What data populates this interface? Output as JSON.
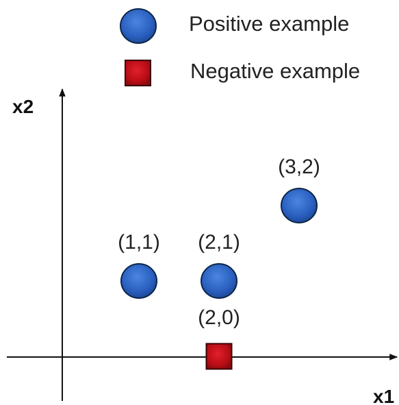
{
  "legend": {
    "positive_label": "Positive example",
    "negative_label": "Negative example"
  },
  "axes": {
    "x_label": "x1",
    "y_label": "x2"
  },
  "colors": {
    "positive_fill": "#2a5fbf",
    "positive_stroke": "#0d2547",
    "negative_fill": "#c0101a",
    "negative_stroke": "#3a0305",
    "axis": "#111111"
  },
  "chart_data": {
    "type": "scatter",
    "xlabel": "x1",
    "ylabel": "x2",
    "series": [
      {
        "name": "Positive example",
        "marker": "circle",
        "points": [
          {
            "x": 1,
            "y": 1,
            "label": "(1,1)"
          },
          {
            "x": 2,
            "y": 1,
            "label": "(2,1)"
          },
          {
            "x": 3,
            "y": 2,
            "label": "(3,2)"
          }
        ]
      },
      {
        "name": "Negative example",
        "marker": "square",
        "points": [
          {
            "x": 2,
            "y": 0,
            "label": "(2,0)"
          }
        ]
      }
    ]
  }
}
